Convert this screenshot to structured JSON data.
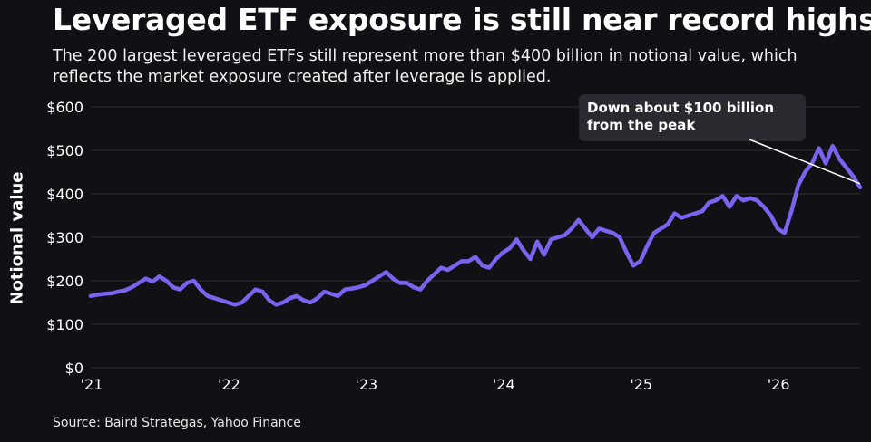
{
  "title": "Leveraged ETF exposure is still near record highs",
  "subtitle": "The 200 largest leveraged ETFs still represent more than $400 billion in notional value, which reflects the market exposure created after leverage is applied.",
  "source": "Source: Baird Strategas, Yahoo Finance",
  "colors": {
    "background": "#111015",
    "line": "#7b63f0",
    "grid": "#2c2b33",
    "annotation_box": "#2a2930"
  },
  "chart_data": {
    "type": "line",
    "title": "Leveraged ETF exposure is still near record highs",
    "xlabel": "",
    "ylabel": "Notional value",
    "ylim": [
      0,
      600
    ],
    "xlim": [
      2021.0,
      2026.6
    ],
    "y_ticks": [
      0,
      100,
      200,
      300,
      400,
      500,
      600
    ],
    "y_tick_labels": [
      "$0",
      "$100",
      "$200",
      "$300",
      "$400",
      "$500",
      "$600"
    ],
    "x_ticks": [
      2021,
      2022,
      2023,
      2024,
      2025,
      2026
    ],
    "x_tick_labels": [
      "'21",
      "'22",
      "'23",
      "'24",
      "'25",
      "'26"
    ],
    "grid": "horizontal",
    "series": [
      {
        "color": "#7b63f0",
        "x": [
          2021.0,
          2021.05,
          2021.1,
          2021.15,
          2021.2,
          2021.25,
          2021.3,
          2021.35,
          2021.4,
          2021.45,
          2021.5,
          2021.55,
          2021.6,
          2021.65,
          2021.7,
          2021.75,
          2021.8,
          2021.85,
          2021.9,
          2021.95,
          2022.0,
          2022.05,
          2022.1,
          2022.15,
          2022.2,
          2022.25,
          2022.3,
          2022.35,
          2022.4,
          2022.45,
          2022.5,
          2022.55,
          2022.6,
          2022.65,
          2022.7,
          2022.75,
          2022.8,
          2022.85,
          2022.9,
          2022.95,
          2023.0,
          2023.05,
          2023.1,
          2023.15,
          2023.2,
          2023.25,
          2023.3,
          2023.35,
          2023.4,
          2023.45,
          2023.5,
          2023.55,
          2023.6,
          2023.65,
          2023.7,
          2023.75,
          2023.8,
          2023.85,
          2023.9,
          2023.95,
          2024.0,
          2024.05,
          2024.1,
          2024.15,
          2024.2,
          2024.25,
          2024.3,
          2024.35,
          2024.4,
          2024.45,
          2024.5,
          2024.55,
          2024.6,
          2024.65,
          2024.7,
          2024.75,
          2024.8,
          2024.85,
          2024.9,
          2024.95,
          2025.0,
          2025.05,
          2025.1,
          2025.15,
          2025.2,
          2025.25,
          2025.3,
          2025.35,
          2025.4,
          2025.45,
          2025.5,
          2025.55,
          2025.6,
          2025.65,
          2025.7,
          2025.75,
          2025.8,
          2025.85,
          2025.9,
          2025.95,
          2026.0,
          2026.05,
          2026.1,
          2026.15,
          2026.2,
          2026.25,
          2026.3,
          2026.35,
          2026.4,
          2026.45,
          2026.5,
          2026.55,
          2026.6
        ],
        "y": [
          165,
          168,
          170,
          171,
          175,
          178,
          185,
          195,
          205,
          198,
          210,
          200,
          185,
          180,
          195,
          200,
          180,
          165,
          160,
          155,
          150,
          145,
          150,
          165,
          180,
          175,
          155,
          145,
          150,
          160,
          165,
          155,
          150,
          160,
          175,
          170,
          165,
          180,
          182,
          185,
          190,
          200,
          210,
          220,
          205,
          195,
          195,
          185,
          180,
          200,
          215,
          230,
          225,
          235,
          245,
          245,
          255,
          235,
          230,
          250,
          265,
          275,
          295,
          270,
          250,
          290,
          260,
          295,
          300,
          305,
          320,
          340,
          320,
          300,
          320,
          315,
          310,
          300,
          265,
          235,
          245,
          280,
          310,
          320,
          330,
          355,
          345,
          350,
          355,
          360,
          380,
          385,
          395,
          370,
          395,
          385,
          390,
          385,
          370,
          350,
          320,
          310,
          360,
          420,
          450,
          470,
          505,
          470,
          510,
          480,
          460,
          440,
          415
        ]
      }
    ],
    "annotations": [
      {
        "text_lines": [
          "Down about $100 billion",
          "from the peak"
        ]
      }
    ]
  }
}
